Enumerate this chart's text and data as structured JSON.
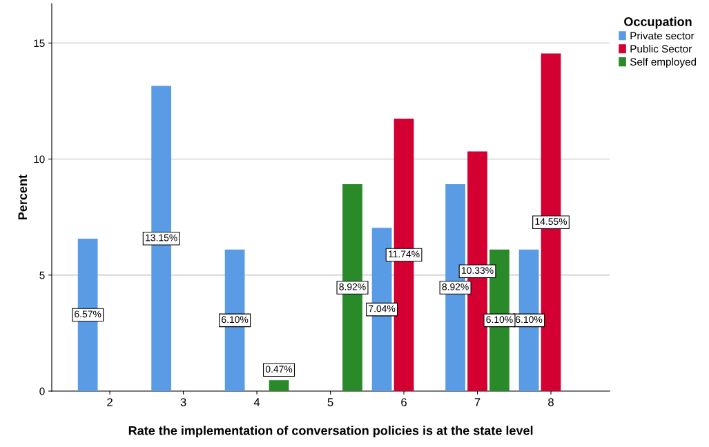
{
  "chart_data": {
    "type": "bar",
    "xlabel": "Rate the implementation of conversation policies is at the state level",
    "ylabel": "Percent",
    "legend_title": "Occupation",
    "legend": "right",
    "grid": "y",
    "categories": [
      "2",
      "3",
      "4",
      "5",
      "6",
      "7",
      "8"
    ],
    "ylim": [
      0,
      16.7
    ],
    "yticks": [
      0,
      5,
      10,
      15
    ],
    "series": [
      {
        "name": "Private sector",
        "color": "#5a9be6",
        "values": [
          6.57,
          13.15,
          6.1,
          null,
          7.04,
          8.92,
          6.1
        ],
        "value_labels": [
          "6.57%",
          "13.15%",
          "6.10%",
          null,
          "7.04%",
          "8.92%",
          "6.10%"
        ]
      },
      {
        "name": "Public Sector",
        "color": "#d40032",
        "values": [
          null,
          null,
          null,
          null,
          11.74,
          10.33,
          14.55
        ],
        "value_labels": [
          null,
          null,
          null,
          null,
          "11.74%",
          "10.33%",
          "14.55%"
        ]
      },
      {
        "name": "Self employed",
        "color": "#2a8a2a",
        "values": [
          null,
          null,
          0.47,
          8.92,
          null,
          6.1,
          null
        ],
        "value_labels": [
          null,
          null,
          "0.47%",
          "8.92%",
          null,
          "6.10%",
          null
        ]
      }
    ]
  }
}
